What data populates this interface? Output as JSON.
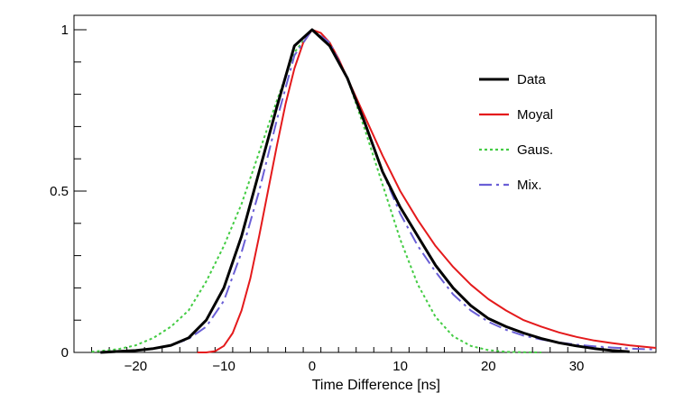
{
  "chart_data": {
    "type": "line",
    "title": "",
    "xlabel": "Time Difference [ns]",
    "ylabel": "",
    "xlim": [
      -27,
      39
    ],
    "ylim": [
      0,
      1.0
    ],
    "grid": false,
    "legend_position": "right",
    "x_ticks": [
      -20,
      -10,
      0,
      10,
      20,
      30
    ],
    "x_tick_labels": [
      "−20",
      "−10",
      "0",
      "10",
      "20",
      "30"
    ],
    "y_ticks": [
      0,
      0.5,
      1
    ],
    "y_tick_labels": [
      "0",
      "0.5",
      "1"
    ],
    "series": [
      {
        "name": "Data",
        "color": "#000000",
        "style": "solid",
        "x": [
          -24,
          -22,
          -20,
          -18,
          -16,
          -14,
          -12,
          -10,
          -8,
          -6,
          -4,
          -2,
          0,
          2,
          4,
          6,
          8,
          10,
          12,
          14,
          16,
          18,
          20,
          22,
          24,
          26,
          28,
          30,
          32,
          34,
          36
        ],
        "y": [
          0.0,
          0.003,
          0.006,
          0.012,
          0.022,
          0.045,
          0.1,
          0.2,
          0.36,
          0.56,
          0.76,
          0.95,
          1.0,
          0.95,
          0.85,
          0.71,
          0.56,
          0.45,
          0.36,
          0.27,
          0.2,
          0.145,
          0.105,
          0.08,
          0.06,
          0.043,
          0.03,
          0.02,
          0.012,
          0.006,
          0.002
        ]
      },
      {
        "name": "Moyal",
        "color": "#e41a1c",
        "style": "solid",
        "x": [
          -13,
          -12,
          -11,
          -10,
          -9,
          -8,
          -7,
          -6,
          -5,
          -4,
          -3,
          -2,
          -1,
          0,
          1,
          2,
          3,
          4,
          6,
          8,
          10,
          12,
          14,
          16,
          18,
          20,
          22,
          24,
          26,
          28,
          30,
          32,
          34,
          36,
          39
        ],
        "y": [
          0.0,
          0.0,
          0.004,
          0.02,
          0.06,
          0.13,
          0.23,
          0.36,
          0.5,
          0.64,
          0.77,
          0.88,
          0.96,
          1.0,
          0.99,
          0.96,
          0.91,
          0.85,
          0.73,
          0.61,
          0.5,
          0.41,
          0.33,
          0.265,
          0.21,
          0.165,
          0.13,
          0.1,
          0.08,
          0.062,
          0.048,
          0.037,
          0.029,
          0.022,
          0.014
        ]
      },
      {
        "name": "Gaus.",
        "color": "#44cc44",
        "style": "dotted",
        "x": [
          -25,
          -22,
          -20,
          -18,
          -16,
          -14,
          -12,
          -10,
          -8,
          -6,
          -4,
          -2,
          0,
          2,
          4,
          6,
          8,
          10,
          12,
          14,
          16,
          18,
          20,
          22,
          24,
          26
        ],
        "y": [
          0.002,
          0.01,
          0.022,
          0.045,
          0.08,
          0.13,
          0.22,
          0.33,
          0.46,
          0.62,
          0.78,
          0.93,
          1.0,
          0.96,
          0.85,
          0.69,
          0.52,
          0.35,
          0.21,
          0.11,
          0.05,
          0.02,
          0.007,
          0.002,
          0.0005,
          0.0
        ]
      },
      {
        "name": "Mix.",
        "color": "#6a5fd6",
        "style": "dashdot",
        "x": [
          -24,
          -22,
          -20,
          -18,
          -16,
          -14,
          -12,
          -10,
          -8,
          -6,
          -4,
          -2,
          0,
          2,
          4,
          6,
          8,
          10,
          12,
          14,
          16,
          18,
          20,
          22,
          24,
          26,
          28,
          30,
          32,
          34,
          36,
          39
        ],
        "y": [
          0.001,
          0.003,
          0.006,
          0.012,
          0.022,
          0.042,
          0.08,
          0.16,
          0.31,
          0.5,
          0.72,
          0.92,
          1.0,
          0.96,
          0.85,
          0.71,
          0.56,
          0.43,
          0.33,
          0.25,
          0.18,
          0.13,
          0.095,
          0.07,
          0.052,
          0.04,
          0.031,
          0.024,
          0.019,
          0.015,
          0.012,
          0.009
        ]
      }
    ]
  }
}
